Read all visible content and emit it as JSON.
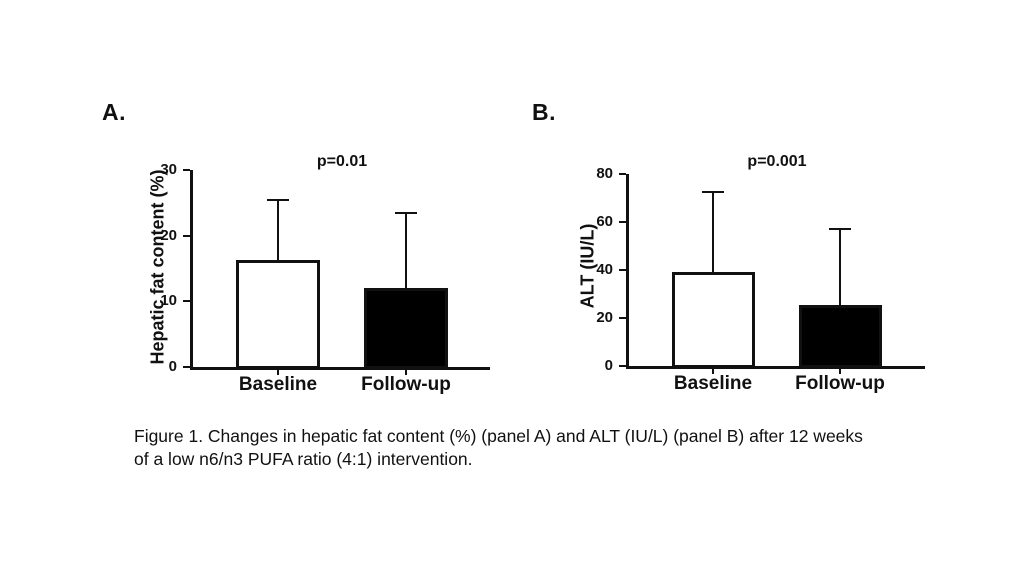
{
  "figure": {
    "caption_lines": [
      "Figure 1. Changes in hepatic fat content (%) (panel A) and ALT (IU/L) (panel B) after 12 weeks",
      "of a low n6/n3 PUFA ratio (4:1) intervention."
    ]
  },
  "colors": {
    "axis": "#111111",
    "background": "#ffffff",
    "baseline_bar_fill": "#ffffff",
    "followup_bar_fill": "#000000"
  },
  "chart_data": [
    {
      "type": "bar",
      "panel_label": "A.",
      "annotation": "p=0.01",
      "categories": [
        "Baseline",
        "Follow-up"
      ],
      "values": [
        16.3,
        12.0
      ],
      "error_upper": [
        25.3,
        23.3
      ],
      "ylabel": "Hepatic fat content (%)",
      "xlabel": "",
      "ylim": [
        0,
        30
      ],
      "yticks": [
        0,
        10,
        20,
        30
      ],
      "bar_colors": [
        "#ffffff",
        "#000000"
      ],
      "grid": false,
      "legend": "none"
    },
    {
      "type": "bar",
      "panel_label": "B.",
      "annotation": "p=0.001",
      "categories": [
        "Baseline",
        "Follow-up"
      ],
      "values": [
        39.0,
        25.5
      ],
      "error_upper": [
        72.0,
        56.5
      ],
      "ylabel": "ALT (IU/L)",
      "xlabel": "",
      "ylim": [
        0,
        80
      ],
      "yticks": [
        0,
        20,
        40,
        60,
        80
      ],
      "bar_colors": [
        "#ffffff",
        "#000000"
      ],
      "grid": false,
      "legend": "none"
    }
  ]
}
